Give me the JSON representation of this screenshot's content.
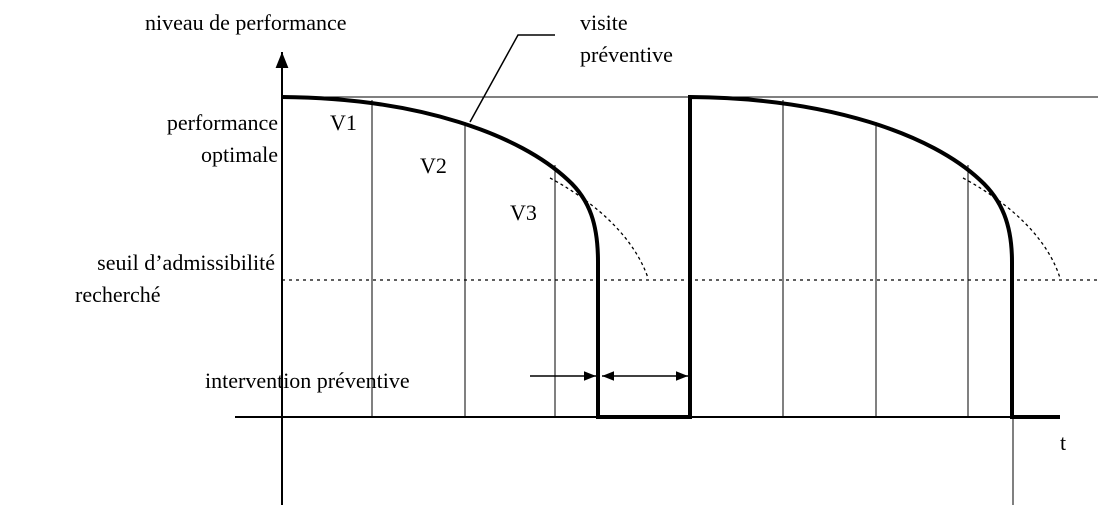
{
  "axis": {
    "y_label": "niveau de performance",
    "x_label": "t"
  },
  "annotations": {
    "visit": [
      "visite",
      "préventive"
    ],
    "optimal": [
      "performance",
      "optimale"
    ],
    "threshold": [
      "seuil d’admissibilité",
      "recherché"
    ],
    "intervention": "intervention préventive"
  },
  "visits": [
    "V1",
    "V2",
    "V3"
  ]
}
